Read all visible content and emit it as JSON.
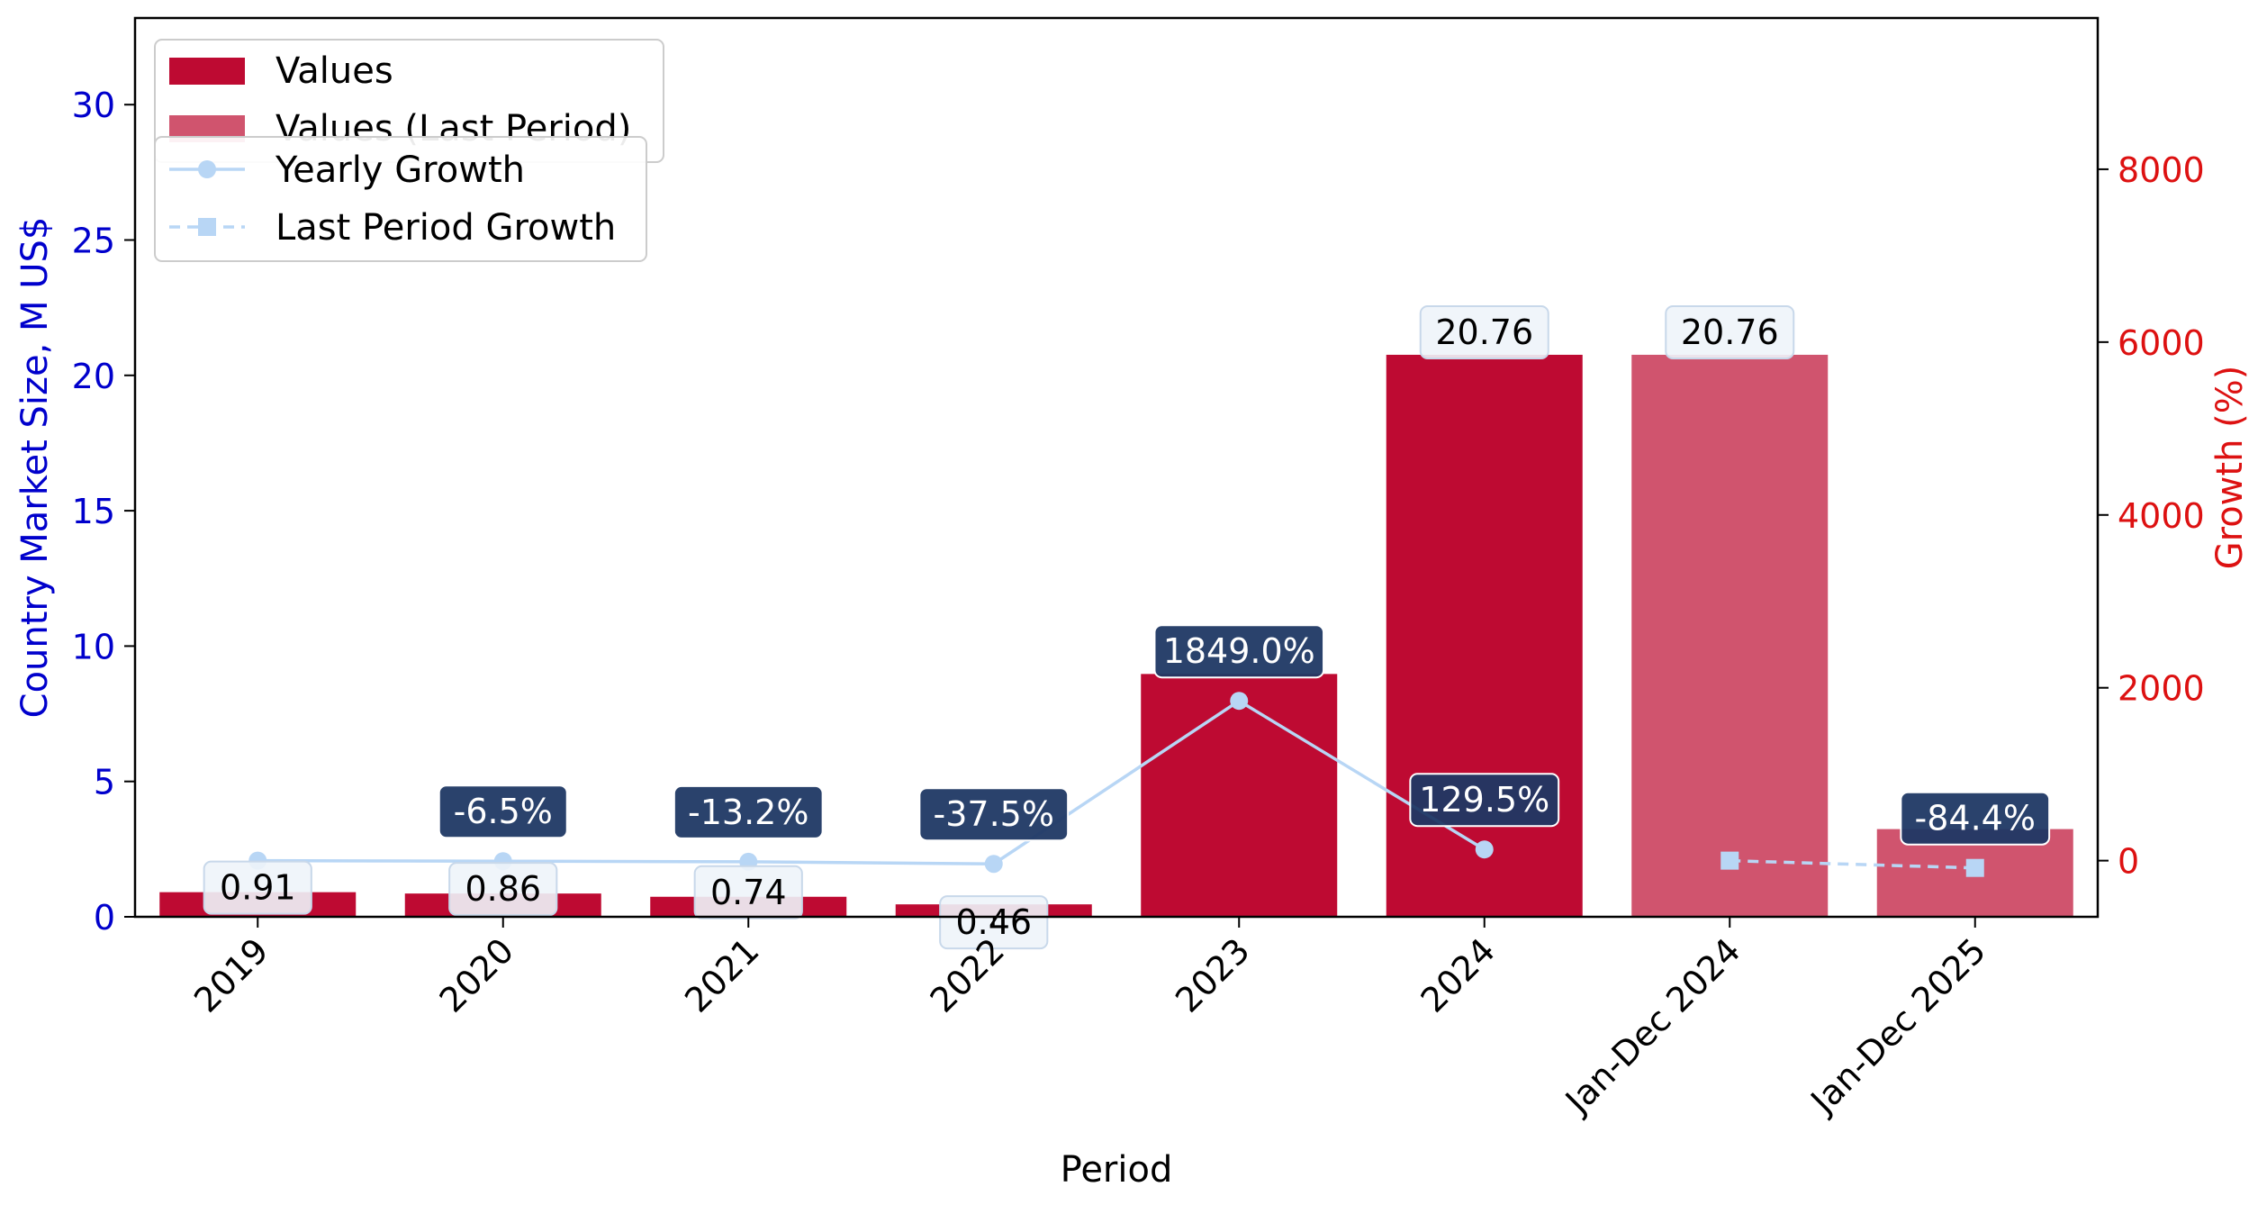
{
  "chart_data": {
    "type": "bar",
    "xlabel": "Period",
    "ylabel": "Country Market Size, M US$",
    "y2label": "Growth (%)",
    "ylim": [
      0,
      33.2
    ],
    "y2lim": [
      -650,
      9750
    ],
    "yticks": [
      0,
      5,
      10,
      15,
      20,
      25,
      30
    ],
    "y2ticks": [
      0,
      2000,
      4000,
      6000,
      8000
    ],
    "categories": [
      "2019",
      "2020",
      "2021",
      "2022",
      "2023",
      "2024",
      "Jan-Dec 2024",
      "Jan-Dec 2025"
    ],
    "series": [
      {
        "name": "Values",
        "kind": "bar",
        "color": "#be0a32",
        "values": [
          0.91,
          0.86,
          0.74,
          0.46,
          8.97,
          20.76,
          null,
          null
        ],
        "labels": [
          "0.91",
          "0.86",
          "0.74",
          "0.46",
          "",
          "20.76",
          "",
          ""
        ]
      },
      {
        "name": "Values (Last Period)",
        "kind": "bar",
        "color": "#d0546e",
        "values": [
          null,
          null,
          null,
          null,
          null,
          null,
          20.76,
          3.24
        ],
        "labels": [
          "",
          "",
          "",
          "",
          "",
          "",
          "20.76",
          ""
        ]
      },
      {
        "name": "Yearly Growth",
        "kind": "line",
        "color": "#b8d6f5",
        "values": [
          0,
          -6.5,
          -13.2,
          -37.5,
          1849.0,
          129.5,
          null,
          null
        ],
        "labels": [
          "",
          "-6.5%",
          "-13.2%",
          "-37.5%",
          "1849.0%",
          "129.5%",
          "",
          ""
        ]
      },
      {
        "name": "Last Period Growth",
        "kind": "line",
        "color": "#b8d6f5",
        "values": [
          null,
          null,
          null,
          null,
          null,
          null,
          0,
          -84.4
        ],
        "labels": [
          "",
          "",
          "",
          "",
          "",
          "",
          "",
          "-84.4%"
        ]
      }
    ],
    "legend": "top-left",
    "colors": {
      "left_axis": "#0000cc",
      "right_axis": "#dd1111",
      "growth_label_bg": "#1f3864",
      "value_label_bg": "#eef4fa"
    }
  }
}
